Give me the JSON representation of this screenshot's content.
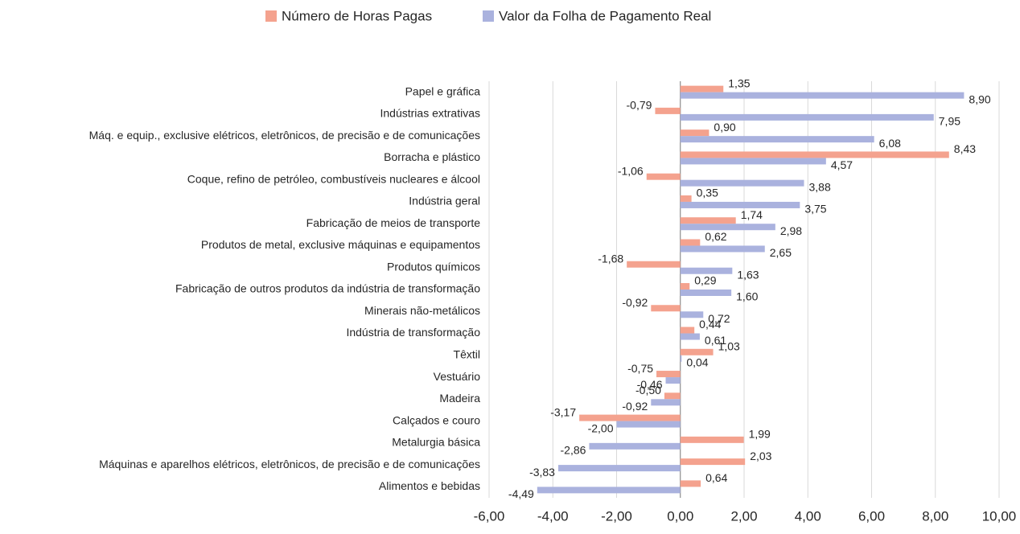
{
  "chart_data": {
    "type": "bar",
    "orientation": "horizontal",
    "categories": [
      "Papel e gráfica",
      "Indústrias extrativas",
      "Máq. e equip., exclusive elétricos, eletrônicos, de precisão e de comunicações",
      "Borracha e plástico",
      "Coque, refino de petróleo, combustíveis nucleares e álcool",
      "Indústria geral",
      "Fabricação de meios de transporte",
      "Produtos de metal, exclusive máquinas e equipamentos",
      "Produtos químicos",
      "Fabricação de outros produtos da indústria de transformação",
      "Minerais não-metálicos",
      "Indústria de transformação",
      "Têxtil",
      "Vestuário",
      "Madeira",
      "Calçados e couro",
      "Metalurgia básica",
      "Máquinas e aparelhos elétricos, eletrônicos, de precisão e de comunicações",
      "Alimentos e bebidas"
    ],
    "series": [
      {
        "name": "Número de Horas Pagas",
        "color": "#f4a28e",
        "values": [
          1.35,
          -0.79,
          0.9,
          8.43,
          -1.06,
          0.35,
          1.74,
          0.62,
          -1.68,
          0.29,
          -0.92,
          0.44,
          1.03,
          -0.75,
          -0.5,
          -3.17,
          1.99,
          2.03,
          0.64
        ],
        "value_labels": [
          "1,35",
          "-0,79",
          "0,90",
          "8,43",
          "-1,06",
          "0,35",
          "1,74",
          "0,62",
          "-1,68",
          "0,29",
          "-0,92",
          "0,44",
          "1,03",
          "-0,75",
          "-0,50",
          "-3,17",
          "1,99",
          "2,03",
          "0,64"
        ]
      },
      {
        "name": "Valor da Folha de Pagamento Real",
        "color": "#aab2de",
        "values": [
          8.9,
          7.95,
          6.08,
          4.57,
          3.88,
          3.75,
          2.98,
          2.65,
          1.63,
          1.6,
          0.72,
          0.61,
          0.04,
          -0.46,
          -0.92,
          -2.0,
          -2.86,
          -3.83,
          -4.49
        ],
        "value_labels": [
          "8,90",
          "7,95",
          "6,08",
          "4,57",
          "3,88",
          "3,75",
          "2,98",
          "2,65",
          "1,63",
          "1,60",
          "0,72",
          "0,61",
          "0,04",
          "-0,46",
          "-0,92",
          "-2,00",
          "-2,86",
          "-3,83",
          "-4,49"
        ]
      }
    ],
    "xlim": [
      -6,
      10
    ],
    "xticks": [
      {
        "value": -6,
        "label": "-6,00"
      },
      {
        "value": -4,
        "label": "-4,00"
      },
      {
        "value": -2,
        "label": "-2,00"
      },
      {
        "value": 0,
        "label": "0,00"
      },
      {
        "value": 2,
        "label": "2,00"
      },
      {
        "value": 4,
        "label": "4,00"
      },
      {
        "value": 6,
        "label": "6,00"
      },
      {
        "value": 8,
        "label": "8,00"
      },
      {
        "value": 10,
        "label": "10,00"
      }
    ],
    "grid": true,
    "legend": "top"
  }
}
